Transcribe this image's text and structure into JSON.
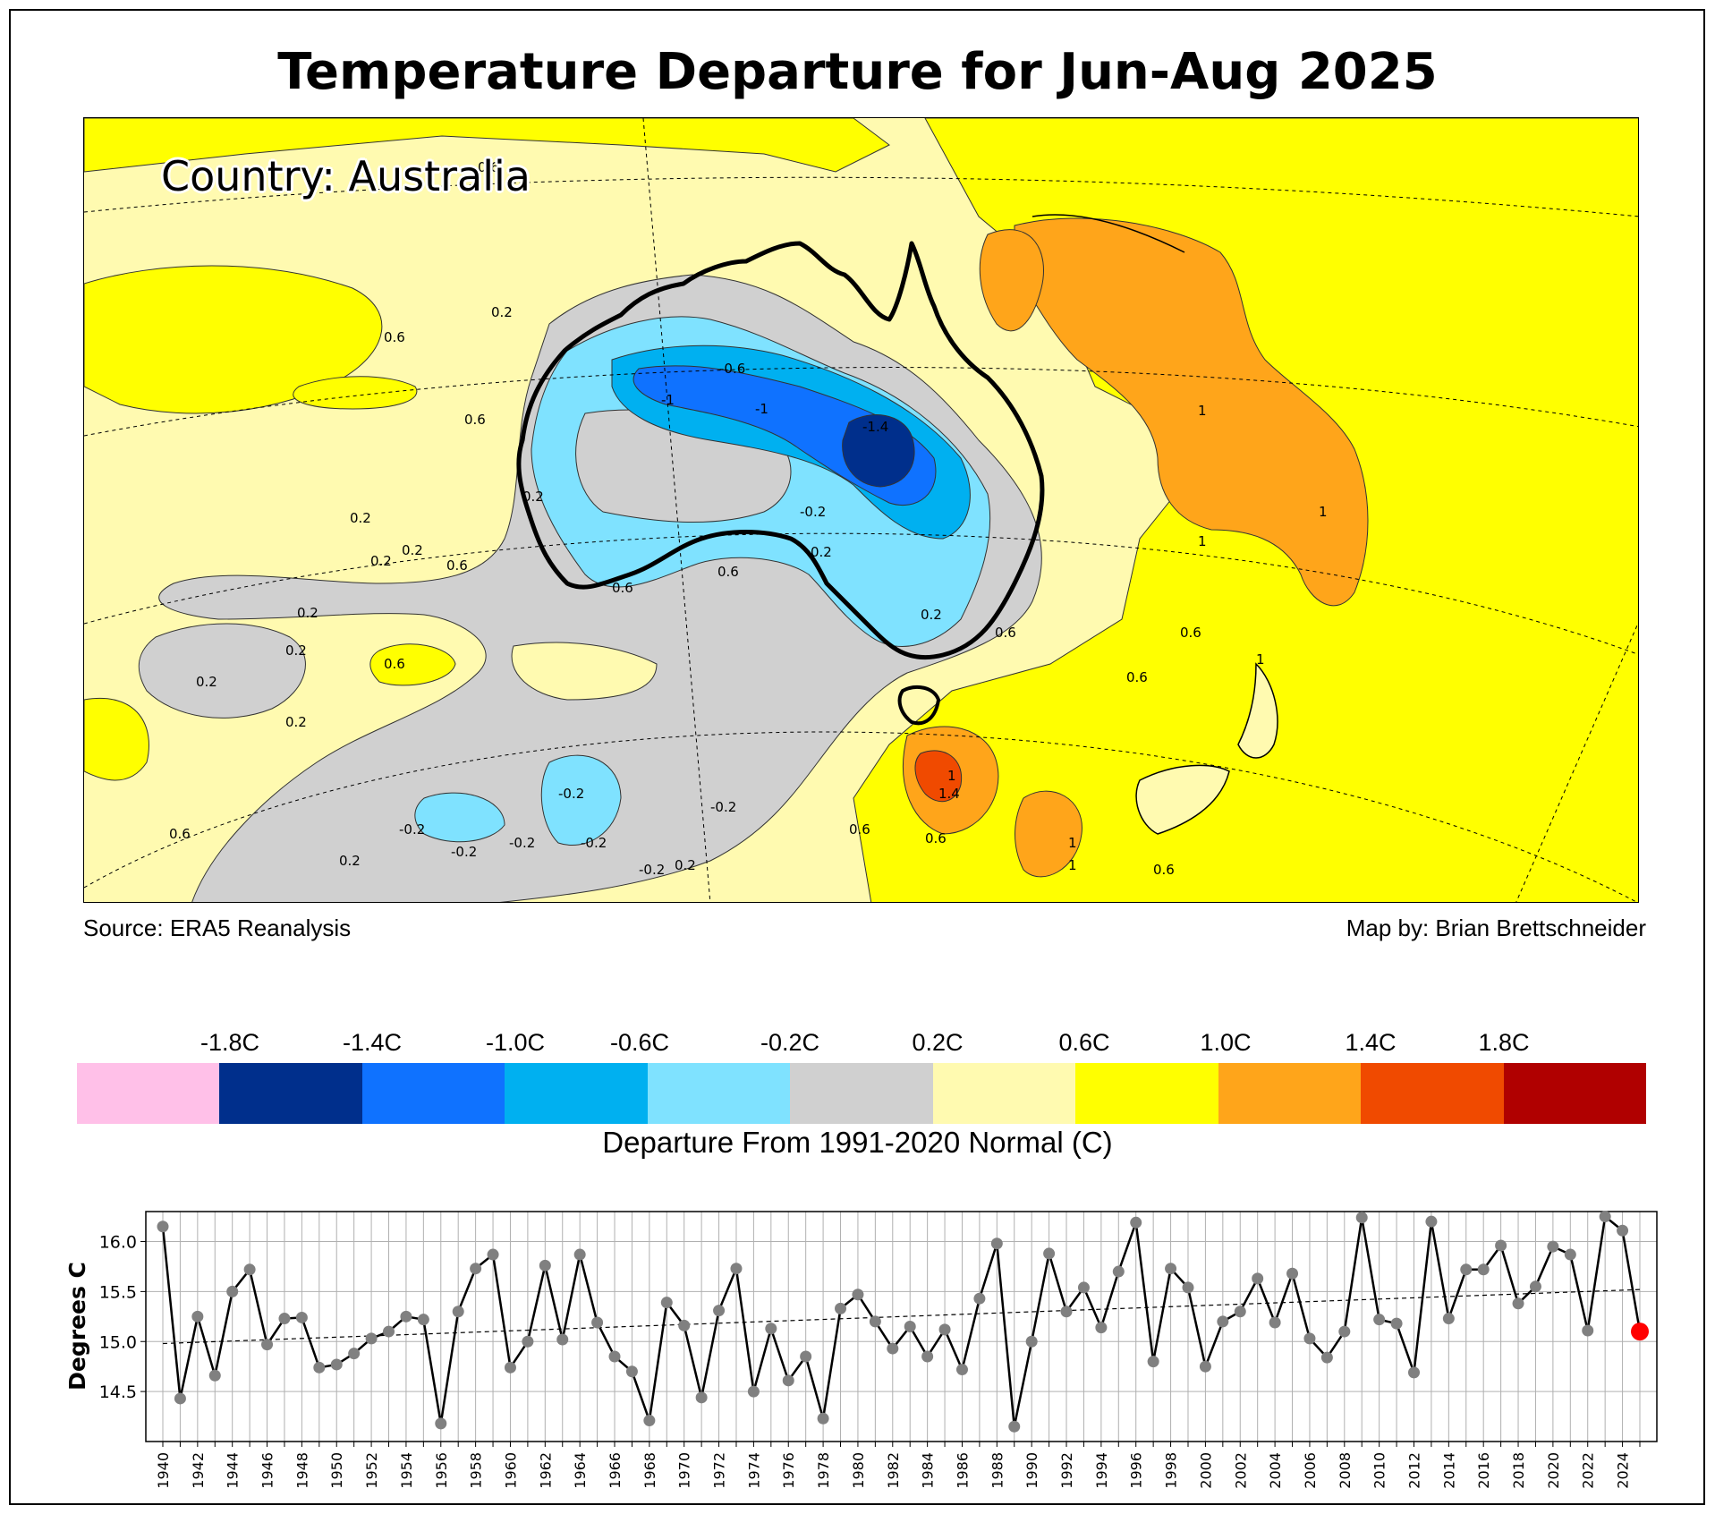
{
  "title": "Temperature Departure for Jun-Aug 2025",
  "map": {
    "country_label": "Country: Australia",
    "contour_labels": [
      "0.6",
      "0.6",
      "0.2",
      "0.6",
      "0.6",
      "0.2",
      "0.2",
      "0.2",
      "0.6",
      "0.2",
      "0.6",
      "0.2",
      "0.2",
      "0.2",
      "0.2",
      "0.6",
      "0.2",
      "-0.2",
      "-0.2",
      "-0.2",
      "-0.2",
      "-0.2",
      "-0.2",
      "-0.2",
      "0.2",
      "0.6",
      "0.2",
      "0.6",
      "0.2",
      "-0.6",
      "-1",
      "-1",
      "-1.4",
      "-0.2",
      "0.6",
      "0.6",
      "0.6",
      "1",
      "1",
      "1",
      "1",
      "1",
      "1.4",
      "1",
      "0.6",
      "0.6",
      "1"
    ],
    "source": "Source: ERA5 Reanalysis",
    "credit": "Map by: Brian Brettschneider"
  },
  "legend": {
    "title": "Departure From 1991-2020 Normal (C)",
    "tick_labels": [
      "-1.8C",
      "-1.4C",
      "-1.0C",
      "-0.6C",
      "-0.2C",
      "0.2C",
      "0.6C",
      "1.0C",
      "1.4C",
      "1.8C"
    ],
    "colors": [
      "#ffc0e8",
      "#002f8c",
      "#0f72ff",
      "#00b0f0",
      "#7fe2ff",
      "#d0d0d0",
      "#fffab0",
      "#ffff00",
      "#ffa51a",
      "#f04a00",
      "#b00000"
    ],
    "land_color": "#000000"
  },
  "chart_data": {
    "type": "line",
    "ylabel": "Degrees C",
    "ylim": [
      14.0,
      16.3
    ],
    "yticks": [
      14.5,
      15.0,
      15.5,
      16.0
    ],
    "ytick_labels": [
      "14.5",
      "15.0",
      "15.5",
      "16.0"
    ],
    "x": [
      1940,
      1941,
      1942,
      1943,
      1944,
      1945,
      1946,
      1947,
      1948,
      1949,
      1950,
      1951,
      1952,
      1953,
      1954,
      1955,
      1956,
      1957,
      1958,
      1959,
      1960,
      1961,
      1962,
      1963,
      1964,
      1965,
      1966,
      1967,
      1968,
      1969,
      1970,
      1971,
      1972,
      1973,
      1974,
      1975,
      1976,
      1977,
      1978,
      1979,
      1980,
      1981,
      1982,
      1983,
      1984,
      1985,
      1986,
      1987,
      1988,
      1989,
      1990,
      1991,
      1992,
      1993,
      1994,
      1995,
      1996,
      1997,
      1998,
      1999,
      2000,
      2001,
      2002,
      2003,
      2004,
      2005,
      2006,
      2007,
      2008,
      2009,
      2010,
      2011,
      2012,
      2013,
      2014,
      2015,
      2016,
      2017,
      2018,
      2019,
      2020,
      2021,
      2022,
      2023,
      2024,
      2025
    ],
    "values": [
      16.15,
      14.43,
      15.25,
      14.66,
      15.5,
      15.72,
      14.97,
      15.23,
      15.24,
      14.74,
      14.77,
      14.88,
      15.03,
      15.1,
      15.25,
      15.22,
      14.18,
      15.3,
      15.73,
      15.87,
      14.74,
      15.0,
      15.76,
      15.02,
      15.87,
      15.19,
      14.85,
      14.7,
      14.21,
      15.39,
      15.16,
      14.44,
      15.31,
      15.73,
      14.5,
      15.13,
      14.61,
      14.85,
      14.23,
      15.33,
      15.47,
      15.2,
      14.93,
      15.15,
      14.85,
      15.12,
      14.72,
      15.43,
      15.98,
      14.15,
      15.0,
      15.88,
      15.3,
      15.54,
      15.14,
      15.7,
      16.19,
      14.8,
      15.73,
      15.54,
      14.75,
      15.2,
      15.3,
      15.63,
      15.19,
      15.68,
      15.03,
      14.84,
      15.1,
      16.24,
      15.22,
      15.18,
      14.69,
      16.2,
      15.23,
      15.72,
      15.72,
      15.96,
      15.38,
      15.55,
      15.95,
      15.87,
      15.11,
      16.25,
      16.11,
      15.1
    ],
    "trend": {
      "start": 14.98,
      "end": 15.52
    },
    "highlight": {
      "year": 2025,
      "color": "#ff0000"
    },
    "xtick_labels": [
      "1940",
      "1942",
      "1944",
      "1946",
      "1948",
      "1950",
      "1952",
      "1954",
      "1956",
      "1958",
      "1960",
      "1962",
      "1964",
      "1966",
      "1968",
      "1970",
      "1972",
      "1974",
      "1976",
      "1978",
      "1980",
      "1982",
      "1984",
      "1986",
      "1988",
      "1990",
      "1992",
      "1994",
      "1996",
      "1998",
      "2000",
      "2002",
      "2004",
      "2006",
      "2008",
      "2010",
      "2012",
      "2014",
      "2016",
      "2018",
      "2020",
      "2022",
      "2024"
    ],
    "grid": true
  }
}
